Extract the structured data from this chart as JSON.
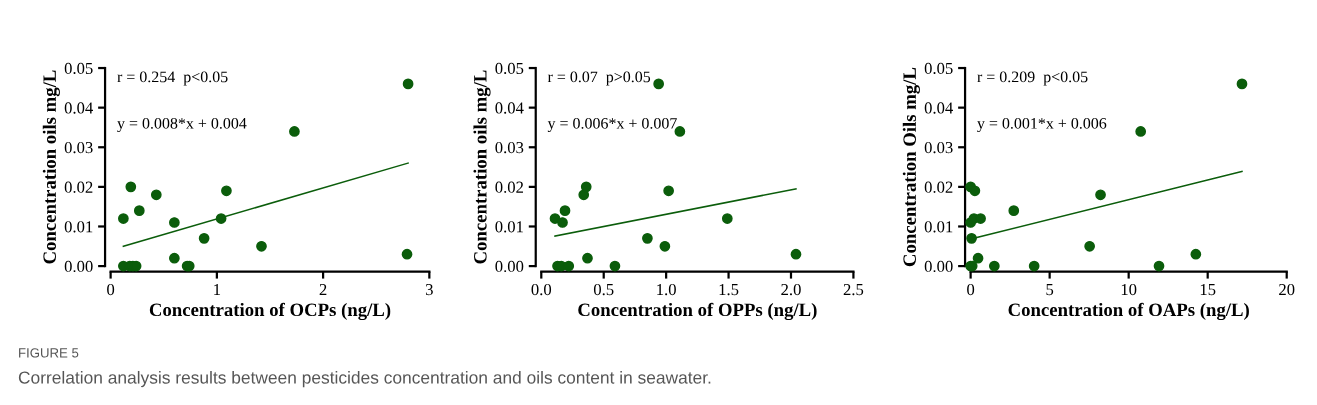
{
  "chart_data": [
    {
      "type": "scatter",
      "xlabel": "Concentration of OCPs (ng/L)",
      "ylabel": "Concentration oils mg/L",
      "grid": false,
      "xlim": [
        0,
        3
      ],
      "xticks": [
        0,
        1,
        2,
        3
      ],
      "ylim": [
        0,
        0.05
      ],
      "yticks": [
        {
          "value": 0,
          "label": "0.00"
        },
        {
          "value": 0.01,
          "label": "0.01"
        },
        {
          "value": 0.02,
          "label": "0.02"
        },
        {
          "value": 0.03,
          "label": "0.03"
        },
        {
          "value": 0.04,
          "label": "0.04"
        },
        {
          "value": 0.05,
          "label": "0.05"
        }
      ],
      "annotations": [
        "r = 0.254  p<0.05",
        "y = 0.008*x + 0.004",
        "FIGURE 5",
        "Correlation analysis results between pesticides concentration and oils content in seawater."
      ],
      "series": [
        {
          "color": "#0b5d0b",
          "marker": "circle",
          "x": [
            0.12,
            0.19,
            0.12,
            0.18,
            0.21,
            0.24,
            0.27,
            0.43,
            0.6,
            0.6,
            0.72,
            0.74,
            0.88,
            1.04,
            1.09,
            1.42,
            1.73,
            2.8,
            2.79
          ],
          "values": [
            0.012,
            0.02,
            0,
            0,
            0,
            0,
            0.014,
            0.018,
            0.011,
            0.002,
            0,
            0,
            0.007,
            0.012,
            0.019,
            0.005,
            0.034,
            0.046,
            0.003
          ]
        },
        {
          "type": "line",
          "color": "#0b5d0b",
          "x": [
            0.12,
            2.8
          ],
          "values": [
            0.005,
            0.026
          ]
        }
      ]
    },
    {
      "type": "scatter",
      "xlabel": "Concentration of OPPs (ng/L)",
      "ylabel": "Concentration oils mg/L",
      "grid": false,
      "xlim": [
        0,
        2.5
      ],
      "xticks": [
        {
          "value": 0,
          "label": "0.0"
        },
        {
          "value": 0.5,
          "label": "0.5"
        },
        {
          "value": 1,
          "label": "1.0"
        },
        {
          "value": 1.5,
          "label": "1.5"
        },
        {
          "value": 2,
          "label": "2.0"
        },
        {
          "value": 2.5,
          "label": "2.5"
        }
      ],
      "ylim": [
        0,
        0.05
      ],
      "yticks": [
        {
          "value": 0,
          "label": "0.00"
        },
        {
          "value": 0.01,
          "label": "0.01"
        },
        {
          "value": 0.02,
          "label": "0.02"
        },
        {
          "value": 0.03,
          "label": "0.03"
        },
        {
          "value": 0.04,
          "label": "0.04"
        },
        {
          "value": 0.05,
          "label": "0.05"
        }
      ],
      "annotations": [
        "r = 0.07  p>0.05",
        "y = 0.006*x + 0.007"
      ],
      "series": [
        {
          "color": "#0b5d0b",
          "marker": "circle",
          "x": [
            0.11,
            0.17,
            0.19,
            0.13,
            0.16,
            0.22,
            0.34,
            0.36,
            0.37,
            0.59,
            0.85,
            0.94,
            0.99,
            1.02,
            1.11,
            1.49,
            2.04
          ],
          "values": [
            0.012,
            0.011,
            0.014,
            0,
            0,
            0,
            0.018,
            0.02,
            0.002,
            0,
            0.007,
            0.046,
            0.005,
            0.019,
            0.034,
            0.012,
            0.003
          ]
        },
        {
          "type": "line",
          "color": "#0b5d0b",
          "x": [
            0.11,
            2.04
          ],
          "values": [
            0.0076,
            0.0195
          ]
        }
      ]
    },
    {
      "type": "scatter",
      "xlabel": "Concentration of OAPs (ng/L)",
      "ylabel": "Concentration Oils mg/L",
      "grid": false,
      "xlim": [
        0,
        20
      ],
      "xticks": [
        0,
        5,
        10,
        15,
        20
      ],
      "ylim": [
        0,
        0.05
      ],
      "yticks": [
        {
          "value": 0,
          "label": "0.00"
        },
        {
          "value": 0.01,
          "label": "0.01"
        },
        {
          "value": 0.02,
          "label": "0.02"
        },
        {
          "value": 0.03,
          "label": "0.03"
        },
        {
          "value": 0.04,
          "label": "0.04"
        },
        {
          "value": 0.05,
          "label": "0.05"
        }
      ],
      "annotations": [
        "r = 0.209  p<0.05",
        "y = 0.001*x + 0.006"
      ],
      "series": [
        {
          "color": "#0b5d0b",
          "marker": "circle",
          "x": [
            0,
            0.27,
            0,
            0.21,
            0.63,
            0.06,
            0.47,
            0,
            0.1,
            1.5,
            2.73,
            4.02,
            7.53,
            8.22,
            10.76,
            11.92,
            14.25,
            17.17
          ],
          "values": [
            0.02,
            0.019,
            0.011,
            0.012,
            0.012,
            0.007,
            0.002,
            0,
            0,
            0,
            0.014,
            0,
            0.005,
            0.018,
            0.034,
            0,
            0.003,
            0.046
          ]
        },
        {
          "type": "line",
          "color": "#0b5d0b",
          "x": [
            0.06,
            17.17
          ],
          "values": [
            0.0069,
            0.0239
          ]
        }
      ]
    }
  ]
}
